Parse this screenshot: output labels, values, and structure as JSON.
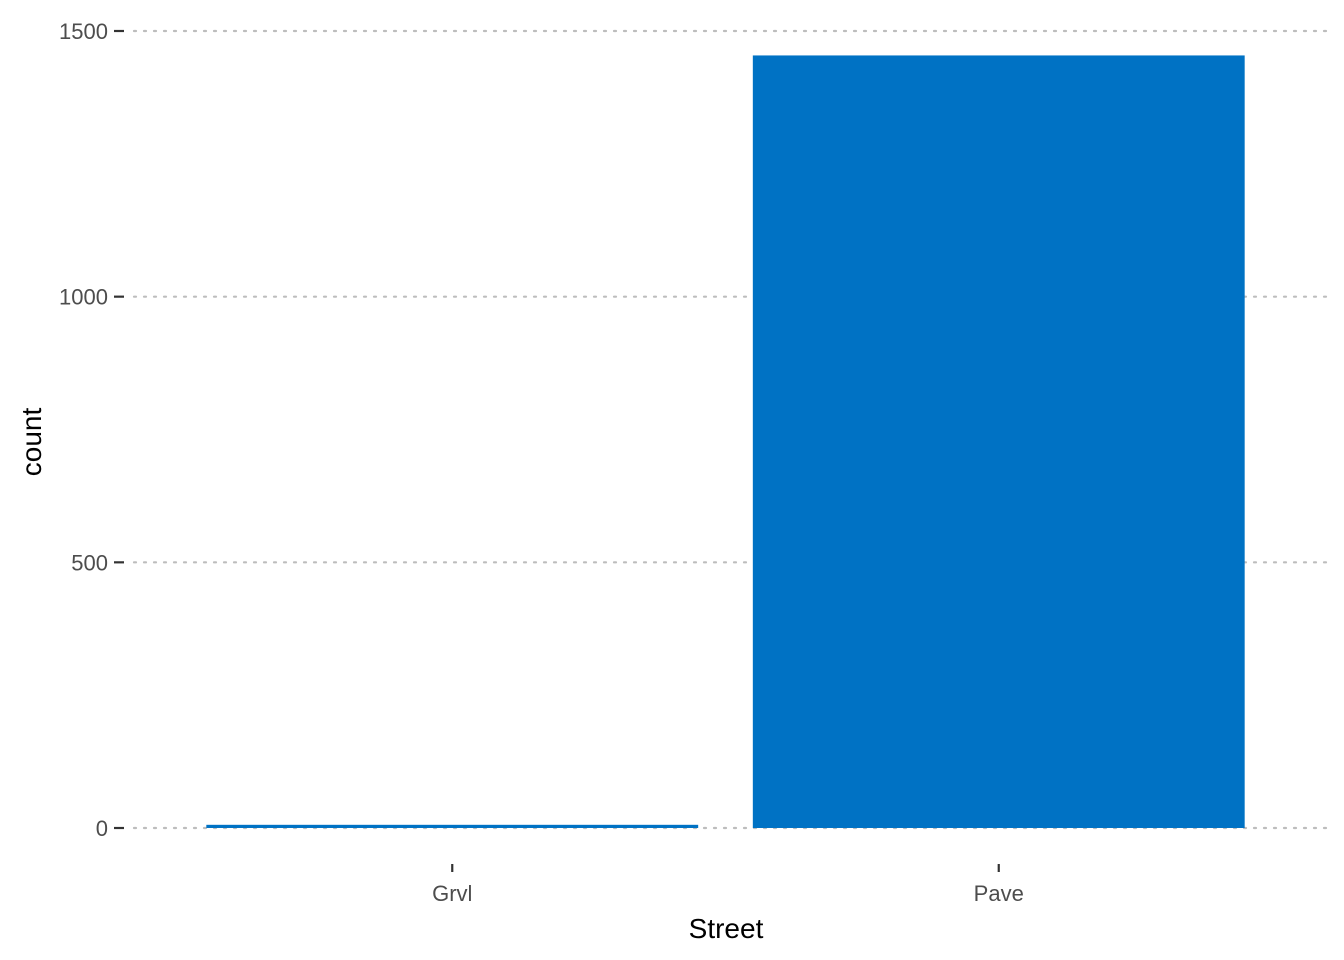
{
  "chart_data": {
    "type": "bar",
    "categories": [
      "Grvl",
      "Pave"
    ],
    "values": [
      6,
      1454
    ],
    "xlabel": "Street",
    "ylabel": "count",
    "ylim": [
      0,
      1500
    ],
    "yticks": [
      0,
      500,
      1000,
      1500
    ],
    "ytick_labels": [
      "0",
      "500",
      "1000",
      "1500"
    ],
    "grid": {
      "horizontal": true,
      "vertical": false,
      "style": "dotted"
    },
    "legend": "none",
    "bar_color": "#0072C4"
  }
}
